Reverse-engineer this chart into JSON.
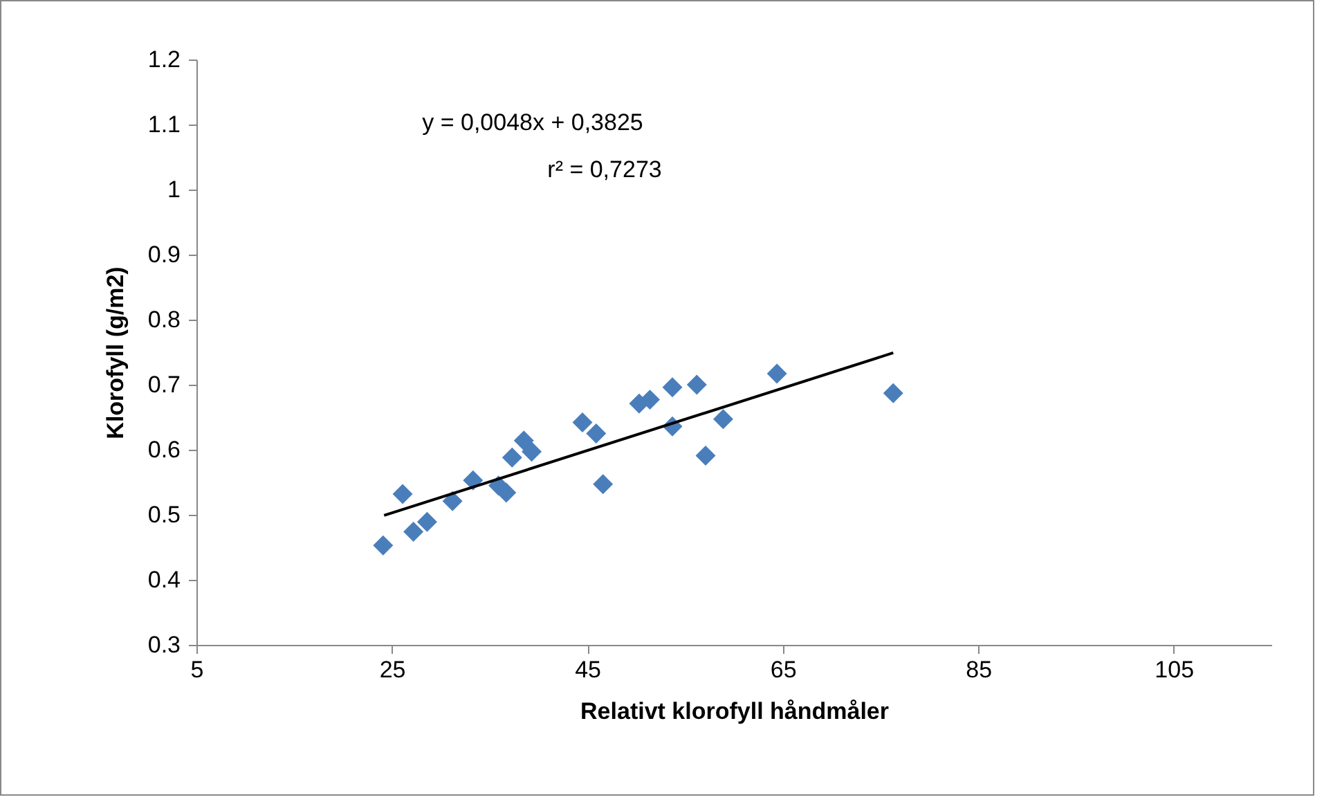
{
  "chart_data": {
    "type": "scatter",
    "xlabel": "Relativt klorofyll håndmåler",
    "ylabel": "Klorofyll  (g/m2)",
    "xlim": [
      5,
      115
    ],
    "xticks": [
      5,
      25,
      45,
      65,
      85,
      105
    ],
    "ylim": [
      0.3,
      1.2
    ],
    "yticks": [
      0.3,
      0.4,
      0.5,
      0.6,
      0.7,
      0.8,
      0.9,
      1,
      1.1,
      1.2
    ],
    "grid": false,
    "marker": "diamond",
    "annotations": [
      "y = 0,0048x + 0,3825",
      "r² = 0,7273"
    ],
    "series": [
      {
        "color": "#4a7ebb",
        "x": [
          24.1,
          26.1,
          27.2,
          28.6,
          31.2,
          33.3,
          35.9,
          36.7,
          37.3,
          38.0,
          38.5,
          39.3,
          44.5,
          45.9,
          46.6,
          50.3,
          51.4,
          53.7,
          56.2,
          53.7,
          57.1,
          58.9,
          64.4,
          76.3
        ],
        "values": [
          0.453,
          0.532,
          0.474,
          0.489,
          0.521,
          0.553,
          0.545,
          0.534,
          0.588,
          null,
          0.614,
          0.597,
          0.642,
          0.625,
          0.547,
          0.671,
          0.677,
          0.696,
          0.7,
          0.636,
          0.591,
          0.647,
          0.717,
          0.687
        ]
      },
      {
        "type": "line",
        "color": "#000000",
        "marker": "none",
        "x": [
          24.2,
          76.3
        ],
        "values": [
          0.499,
          0.749
        ]
      }
    ]
  }
}
